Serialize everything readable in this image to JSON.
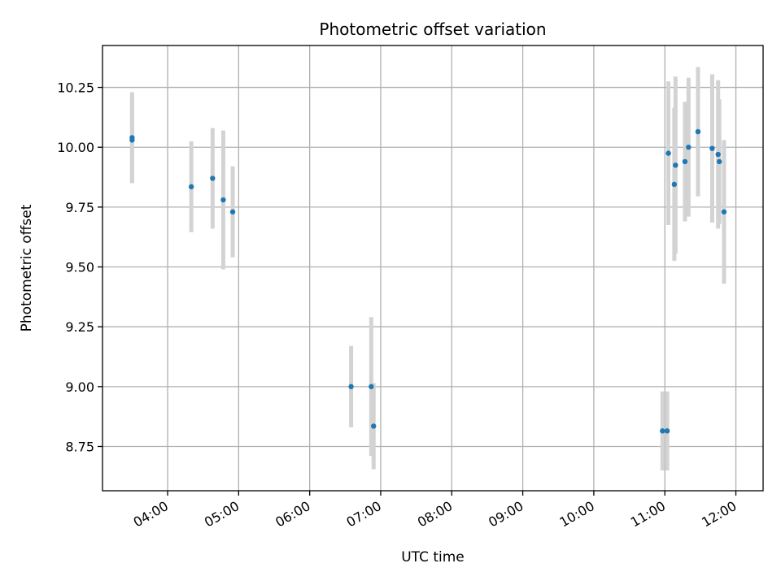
{
  "chart_data": {
    "type": "scatter",
    "title": "Photometric offset variation",
    "xlabel": "UTC time",
    "ylabel": "Photometric offset",
    "x_ticks": [
      "04:00",
      "05:00",
      "06:00",
      "07:00",
      "08:00",
      "09:00",
      "10:00",
      "11:00",
      "12:00"
    ],
    "y_ticks": [
      "8.75",
      "9.00",
      "9.25",
      "9.50",
      "9.75",
      "10.00",
      "10.25"
    ],
    "xlim": [
      "03:05",
      "12:23"
    ],
    "ylim": [
      8.565,
      10.425
    ],
    "grid": true,
    "colors": {
      "point": "#1f77b4",
      "errorbar": "#d3d3d3",
      "grid": "#b0b0b0"
    },
    "series": [
      {
        "points": [
          {
            "x": "03:30",
            "y": 10.04,
            "err": 0.19
          },
          {
            "x": "03:30",
            "y": 10.03,
            "err": 0.18
          },
          {
            "x": "04:20",
            "y": 9.835,
            "err": 0.19
          },
          {
            "x": "04:38",
            "y": 9.87,
            "err": 0.21
          },
          {
            "x": "04:47",
            "y": 9.78,
            "err": 0.29
          },
          {
            "x": "04:55",
            "y": 9.73,
            "err": 0.19
          },
          {
            "x": "06:35",
            "y": 9.0,
            "err": 0.17
          },
          {
            "x": "06:52",
            "y": 9.0,
            "err": 0.29
          },
          {
            "x": "06:54",
            "y": 8.835,
            "err": 0.18
          },
          {
            "x": "10:58",
            "y": 8.815,
            "err": 0.165
          },
          {
            "x": "11:02",
            "y": 8.815,
            "err": 0.165
          },
          {
            "x": "11:03",
            "y": 9.975,
            "err": 0.3
          },
          {
            "x": "11:08",
            "y": 9.845,
            "err": 0.32
          },
          {
            "x": "11:09",
            "y": 9.925,
            "err": 0.37
          },
          {
            "x": "11:17",
            "y": 9.94,
            "err": 0.25
          },
          {
            "x": "11:20",
            "y": 10.0,
            "err": 0.29
          },
          {
            "x": "11:28",
            "y": 10.065,
            "err": 0.27
          },
          {
            "x": "11:40",
            "y": 9.995,
            "err": 0.31
          },
          {
            "x": "11:45",
            "y": 9.97,
            "err": 0.31
          },
          {
            "x": "11:46",
            "y": 9.94,
            "err": 0.26
          },
          {
            "x": "11:50",
            "y": 9.73,
            "err": 0.3
          }
        ]
      }
    ]
  }
}
